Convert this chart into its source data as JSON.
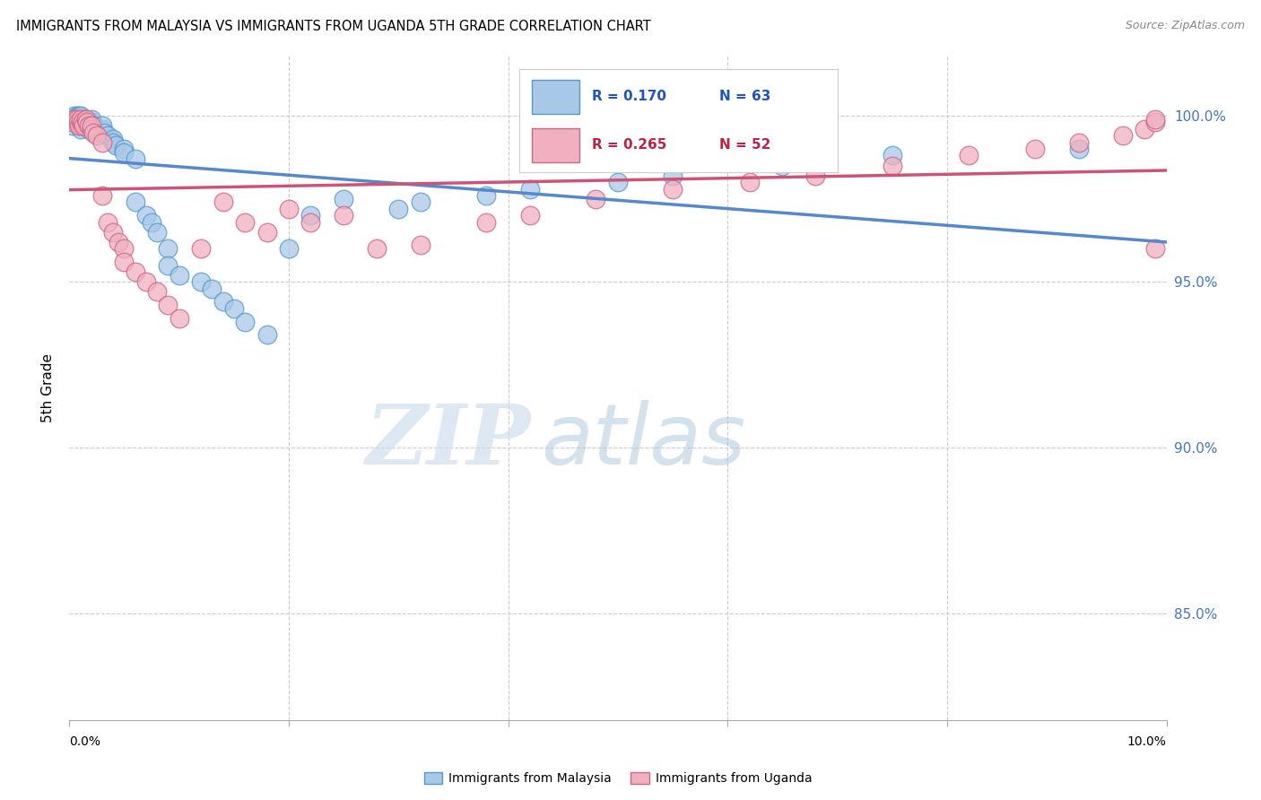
{
  "title": "IMMIGRANTS FROM MALAYSIA VS IMMIGRANTS FROM UGANDA 5TH GRADE CORRELATION CHART",
  "source": "Source: ZipAtlas.com",
  "ylabel": "5th Grade",
  "xmin": 0.0,
  "xmax": 0.1,
  "ymin": 0.818,
  "ymax": 1.018,
  "yticks": [
    0.85,
    0.9,
    0.95,
    1.0
  ],
  "ytick_labels": [
    "85.0%",
    "90.0%",
    "95.0%",
    "100.0%"
  ],
  "xtick_positions": [
    0.0,
    0.02,
    0.04,
    0.06,
    0.08,
    0.1
  ],
  "watermark_zip": "ZIP",
  "watermark_atlas": "atlas",
  "malaysia_color": "#a8c8e8",
  "malaysia_edge": "#5599cc",
  "uganda_color": "#f0b0c0",
  "uganda_edge": "#cc6688",
  "malaysia_R": 0.17,
  "malaysia_N": 63,
  "uganda_R": 0.265,
  "uganda_N": 52,
  "malaysia_line_color": "#5588cc",
  "uganda_line_color": "#cc5577",
  "legend_malaysia_label": "Immigrants from Malaysia",
  "legend_uganda_label": "Immigrants from Uganda",
  "malaysia_x": [
    0.0003,
    0.0005,
    0.0005,
    0.0006,
    0.0007,
    0.0007,
    0.0008,
    0.0008,
    0.0009,
    0.0009,
    0.001,
    0.001,
    0.001,
    0.001,
    0.0012,
    0.0013,
    0.0014,
    0.0015,
    0.0015,
    0.0016,
    0.0017,
    0.0018,
    0.002,
    0.002,
    0.002,
    0.0022,
    0.0023,
    0.0025,
    0.003,
    0.003,
    0.0032,
    0.0035,
    0.004,
    0.004,
    0.0042,
    0.005,
    0.005,
    0.006,
    0.006,
    0.007,
    0.0075,
    0.008,
    0.009,
    0.009,
    0.01,
    0.012,
    0.013,
    0.014,
    0.015,
    0.016,
    0.018,
    0.02,
    0.022,
    0.025,
    0.03,
    0.032,
    0.038,
    0.042,
    0.05,
    0.055,
    0.065,
    0.075,
    0.092
  ],
  "malaysia_y": [
    0.997,
    0.999,
    1.0,
    0.998,
    0.999,
    1.0,
    0.998,
    0.999,
    1.0,
    0.997,
    0.998,
    0.999,
    1.0,
    0.996,
    0.997,
    0.998,
    0.999,
    0.998,
    0.999,
    0.997,
    0.998,
    0.996,
    0.997,
    0.998,
    0.999,
    0.996,
    0.997,
    0.995,
    0.996,
    0.997,
    0.995,
    0.994,
    0.993,
    0.992,
    0.991,
    0.99,
    0.989,
    0.987,
    0.974,
    0.97,
    0.968,
    0.965,
    0.96,
    0.955,
    0.952,
    0.95,
    0.948,
    0.944,
    0.942,
    0.938,
    0.934,
    0.96,
    0.97,
    0.975,
    0.972,
    0.974,
    0.976,
    0.978,
    0.98,
    0.982,
    0.985,
    0.988,
    0.99
  ],
  "uganda_x": [
    0.0003,
    0.0005,
    0.0007,
    0.0008,
    0.0009,
    0.001,
    0.001,
    0.0012,
    0.0013,
    0.0015,
    0.0016,
    0.0018,
    0.002,
    0.002,
    0.0022,
    0.0025,
    0.003,
    0.003,
    0.0035,
    0.004,
    0.0045,
    0.005,
    0.005,
    0.006,
    0.007,
    0.008,
    0.009,
    0.01,
    0.012,
    0.014,
    0.016,
    0.018,
    0.02,
    0.022,
    0.025,
    0.028,
    0.032,
    0.038,
    0.042,
    0.048,
    0.055,
    0.062,
    0.068,
    0.075,
    0.082,
    0.088,
    0.092,
    0.096,
    0.098,
    0.099,
    0.099,
    0.099
  ],
  "uganda_y": [
    0.998,
    0.999,
    0.999,
    0.998,
    0.997,
    0.998,
    0.999,
    0.998,
    0.997,
    0.999,
    0.998,
    0.997,
    0.996,
    0.997,
    0.995,
    0.994,
    0.992,
    0.976,
    0.968,
    0.965,
    0.962,
    0.96,
    0.956,
    0.953,
    0.95,
    0.947,
    0.943,
    0.939,
    0.96,
    0.974,
    0.968,
    0.965,
    0.972,
    0.968,
    0.97,
    0.96,
    0.961,
    0.968,
    0.97,
    0.975,
    0.978,
    0.98,
    0.982,
    0.985,
    0.988,
    0.99,
    0.992,
    0.994,
    0.996,
    0.998,
    0.999,
    0.96
  ]
}
